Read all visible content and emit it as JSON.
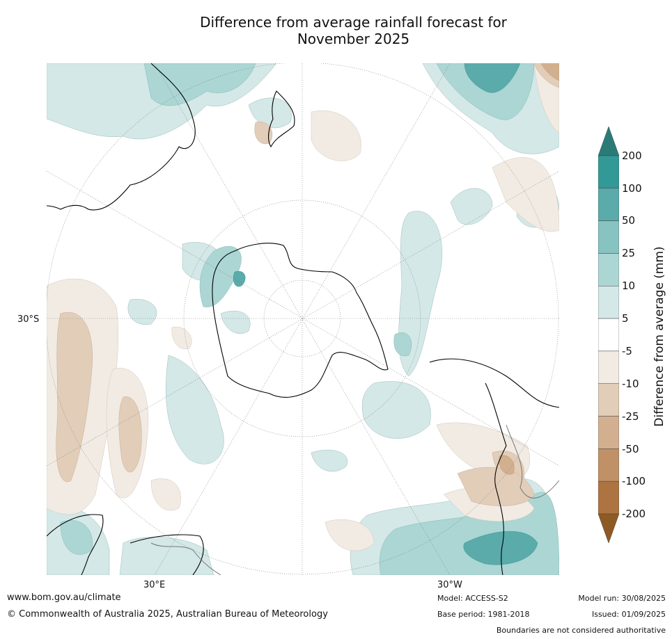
{
  "title_line1": "Difference from average rainfall forecast for",
  "title_line2": "November 2025",
  "map": {
    "projection": "south-polar-stereographic",
    "latitude_label": "30°S",
    "longitude_labels": [
      "30°E",
      "30°W"
    ]
  },
  "colorbar": {
    "title": "Difference from average (mm)",
    "tick_labels": [
      "200",
      "100",
      "50",
      "25",
      "10",
      "5",
      "-5",
      "-10",
      "-25",
      "-50",
      "-100",
      "-200"
    ],
    "colors": [
      "#2a7a78",
      "#339997",
      "#5aabaa",
      "#86c3c1",
      "#abd6d4",
      "#d3e8e7",
      "#ffffff",
      "#f1ebe4",
      "#e2cdb9",
      "#d2b08f",
      "#c09066",
      "#ad7441",
      "#8e5a24"
    ]
  },
  "footer": {
    "website": "www.bom.gov.au/climate",
    "copyright": "© Commonwealth of Australia 2025, Australian Bureau of Meteorology",
    "model": "Model: ACCESS-S2",
    "base_period": "Base period: 1981-2018",
    "model_run": "Model run: 30/08/2025",
    "issued": "Issued: 01/09/2025",
    "disclaimer": "Boundaries are not considered authoritative"
  }
}
